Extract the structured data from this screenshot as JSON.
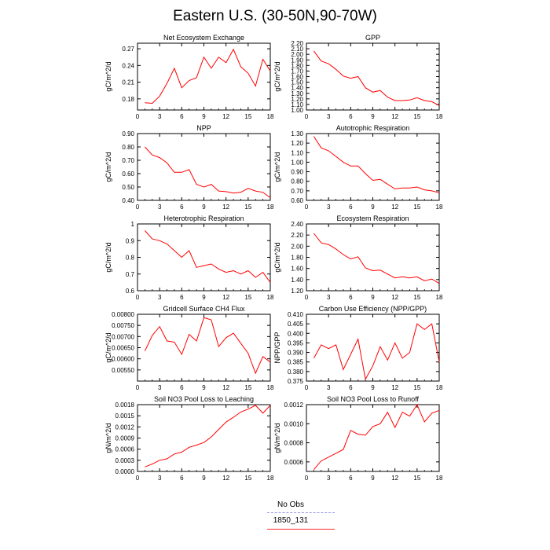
{
  "title": "Eastern U.S. (30-50N,90-70W)",
  "colors": {
    "series": "#ff0000",
    "obs": "#9999ee",
    "axis": "#000000"
  },
  "legend": [
    {
      "label": "No Obs",
      "style": "dashed",
      "color": "#9999ee"
    },
    {
      "label": "1850_131",
      "style": "solid",
      "color": "#ff2a2a"
    }
  ],
  "chart_data": [
    {
      "type": "line",
      "title": "Net Ecosystem Exchange",
      "ylabel": "gC/m^2/d",
      "xlim": [
        0,
        18
      ],
      "xticks": [
        0,
        3,
        6,
        9,
        12,
        15,
        18
      ],
      "ylim": [
        0.16,
        0.28
      ],
      "yticks": [
        "0.18",
        "0.21",
        "0.24",
        "0.27"
      ],
      "series": [
        {
          "x": [
            1,
            2,
            3,
            4,
            5,
            6,
            7,
            8,
            9,
            10,
            11,
            12,
            13,
            14,
            15,
            16,
            17,
            18
          ],
          "values": [
            0.173,
            0.172,
            0.185,
            0.208,
            0.235,
            0.2,
            0.213,
            0.218,
            0.255,
            0.235,
            0.255,
            0.245,
            0.269,
            0.238,
            0.226,
            0.203,
            0.251,
            0.23
          ]
        }
      ]
    },
    {
      "type": "line",
      "title": "GPP",
      "ylabel": "gC/m^2/d",
      "xlim": [
        0,
        18
      ],
      "xticks": [
        0,
        3,
        6,
        9,
        12,
        15,
        18
      ],
      "ylim": [
        1.0,
        2.2
      ],
      "yticks": [
        "1.00",
        "1.10",
        "1.20",
        "1.30",
        "1.40",
        "1.50",
        "1.60",
        "1.70",
        "1.80",
        "1.90",
        "2.00",
        "2.10",
        "2.20"
      ],
      "series": [
        {
          "x": [
            1,
            2,
            3,
            4,
            5,
            6,
            7,
            8,
            9,
            10,
            11,
            12,
            13,
            14,
            15,
            16,
            17,
            18
          ],
          "values": [
            2.06,
            1.88,
            1.83,
            1.73,
            1.61,
            1.57,
            1.6,
            1.4,
            1.32,
            1.35,
            1.23,
            1.17,
            1.17,
            1.18,
            1.22,
            1.17,
            1.15,
            1.08
          ]
        }
      ]
    },
    {
      "type": "line",
      "title": "NPP",
      "ylabel": "gC/m^2/d",
      "xlim": [
        0,
        18
      ],
      "xticks": [
        0,
        3,
        6,
        9,
        12,
        15,
        18
      ],
      "ylim": [
        0.4,
        0.9
      ],
      "yticks": [
        "0.40",
        "0.50",
        "0.60",
        "0.70",
        "0.80",
        "0.90"
      ],
      "series": [
        {
          "x": [
            1,
            2,
            3,
            4,
            5,
            6,
            7,
            8,
            9,
            10,
            11,
            12,
            13,
            14,
            15,
            16,
            17,
            18
          ],
          "values": [
            0.8,
            0.74,
            0.72,
            0.68,
            0.61,
            0.61,
            0.63,
            0.52,
            0.5,
            0.52,
            0.47,
            0.465,
            0.455,
            0.46,
            0.49,
            0.47,
            0.46,
            0.42
          ]
        }
      ]
    },
    {
      "type": "line",
      "title": "Autotrophic Respiration",
      "ylabel": "gC/m^2/d",
      "xlim": [
        0,
        18
      ],
      "xticks": [
        0,
        3,
        6,
        9,
        12,
        15,
        18
      ],
      "ylim": [
        0.6,
        1.3
      ],
      "yticks": [
        "0.60",
        "0.70",
        "0.80",
        "0.90",
        "1.00",
        "1.10",
        "1.20",
        "1.30"
      ],
      "series": [
        {
          "x": [
            1,
            2,
            3,
            4,
            5,
            6,
            7,
            8,
            9,
            10,
            11,
            12,
            13,
            14,
            15,
            16,
            17,
            18
          ],
          "values": [
            1.27,
            1.15,
            1.12,
            1.06,
            1.0,
            0.96,
            0.96,
            0.88,
            0.81,
            0.82,
            0.77,
            0.72,
            0.73,
            0.73,
            0.74,
            0.71,
            0.7,
            0.68
          ]
        }
      ]
    },
    {
      "type": "line",
      "title": "Heterotrophic Respiration",
      "ylabel": "gC/m^2/d",
      "xlim": [
        0,
        18
      ],
      "xticks": [
        0,
        3,
        6,
        9,
        12,
        15,
        18
      ],
      "ylim": [
        0.6,
        1.0
      ],
      "yticks": [
        "0.6",
        "0.7",
        "0.8",
        "0.9",
        "1"
      ],
      "series": [
        {
          "x": [
            1,
            2,
            3,
            4,
            5,
            6,
            7,
            8,
            9,
            10,
            11,
            12,
            13,
            14,
            15,
            16,
            17,
            18
          ],
          "values": [
            0.96,
            0.91,
            0.9,
            0.88,
            0.84,
            0.8,
            0.84,
            0.74,
            0.75,
            0.76,
            0.73,
            0.71,
            0.72,
            0.7,
            0.72,
            0.68,
            0.71,
            0.65
          ]
        }
      ]
    },
    {
      "type": "line",
      "title": "Ecosystem Respiration",
      "ylabel": "gC/m^2/d",
      "xlim": [
        0,
        18
      ],
      "xticks": [
        0,
        3,
        6,
        9,
        12,
        15,
        18
      ],
      "ylim": [
        1.2,
        2.4
      ],
      "yticks": [
        "1.20",
        "1.40",
        "1.60",
        "1.80",
        "2.00",
        "2.20",
        "2.40"
      ],
      "series": [
        {
          "x": [
            1,
            2,
            3,
            4,
            5,
            6,
            7,
            8,
            9,
            10,
            11,
            12,
            13,
            14,
            15,
            16,
            17,
            18
          ],
          "values": [
            2.23,
            2.06,
            2.03,
            1.95,
            1.85,
            1.77,
            1.81,
            1.61,
            1.56,
            1.57,
            1.5,
            1.43,
            1.45,
            1.43,
            1.45,
            1.38,
            1.41,
            1.33
          ]
        }
      ]
    },
    {
      "type": "line",
      "title": "Gridcell Surface CH4 Flux",
      "ylabel": "gC/m^2/d",
      "xlim": [
        0,
        18
      ],
      "xticks": [
        0,
        3,
        6,
        9,
        12,
        15,
        18
      ],
      "ylim": [
        0.005,
        0.008
      ],
      "yticks": [
        "0.00550",
        "0.00600",
        "0.00650",
        "0.00700",
        "0.00750",
        "0.00800"
      ],
      "series": [
        {
          "x": [
            1,
            2,
            3,
            4,
            5,
            6,
            7,
            8,
            9,
            10,
            11,
            12,
            13,
            14,
            15,
            16,
            17,
            18
          ],
          "values": [
            0.00635,
            0.00705,
            0.00745,
            0.0068,
            0.00675,
            0.0062,
            0.0071,
            0.0068,
            0.00785,
            0.00775,
            0.00655,
            0.00695,
            0.00715,
            0.0067,
            0.00625,
            0.00535,
            0.0061,
            0.00585
          ]
        }
      ]
    },
    {
      "type": "line",
      "title": "Carbon Use Efficiency (NPP/GPP)",
      "ylabel": "NPP/GPP",
      "xlim": [
        0,
        18
      ],
      "xticks": [
        0,
        3,
        6,
        9,
        12,
        15,
        18
      ],
      "ylim": [
        0.375,
        0.41
      ],
      "yticks": [
        "0.375",
        "0.380",
        "0.385",
        "0.390",
        "0.395",
        "0.400",
        "0.405",
        "0.410"
      ],
      "series": [
        {
          "x": [
            1,
            2,
            3,
            4,
            5,
            6,
            7,
            8,
            9,
            10,
            11,
            12,
            13,
            14,
            15,
            16,
            17,
            18
          ],
          "values": [
            0.387,
            0.394,
            0.392,
            0.394,
            0.381,
            0.389,
            0.397,
            0.376,
            0.383,
            0.393,
            0.386,
            0.395,
            0.387,
            0.39,
            0.405,
            0.402,
            0.405,
            0.385
          ]
        }
      ]
    },
    {
      "type": "line",
      "title": "Soil NO3 Pool Loss to Leaching",
      "ylabel": "gN/m^2/d",
      "xlim": [
        0,
        18
      ],
      "xticks": [
        0,
        3,
        6,
        9,
        12,
        15,
        18
      ],
      "ylim": [
        0.0,
        0.0018
      ],
      "yticks": [
        "0.0000",
        "0.0003",
        "0.0006",
        "0.0009",
        "0.0012",
        "0.0015",
        "0.0018"
      ],
      "series": [
        {
          "x": [
            1,
            2,
            3,
            4,
            5,
            6,
            7,
            8,
            9,
            10,
            11,
            12,
            13,
            14,
            15,
            16,
            17,
            18
          ],
          "values": [
            0.00012,
            0.0002,
            0.0003,
            0.00034,
            0.00047,
            0.00052,
            0.00065,
            0.00071,
            0.00078,
            0.00093,
            0.00113,
            0.00133,
            0.00146,
            0.0016,
            0.00168,
            0.00178,
            0.00157,
            0.00178
          ]
        }
      ]
    },
    {
      "type": "line",
      "title": "Soil NO3 Pool Loss to Runoff",
      "ylabel": "gN/m^2/d",
      "xlim": [
        0,
        18
      ],
      "xticks": [
        0,
        3,
        6,
        9,
        12,
        15,
        18
      ],
      "ylim": [
        0.0005,
        0.0012
      ],
      "yticks": [
        "0.0006",
        "0.0008",
        "0.0010",
        "0.0012"
      ],
      "series": [
        {
          "x": [
            1,
            2,
            3,
            4,
            5,
            6,
            7,
            8,
            9,
            10,
            11,
            12,
            13,
            14,
            15,
            16,
            17,
            18
          ],
          "values": [
            0.00052,
            0.00061,
            0.00065,
            0.00069,
            0.00073,
            0.00093,
            0.00089,
            0.00088,
            0.00097,
            0.001,
            0.00112,
            0.00096,
            0.00112,
            0.00108,
            0.0012,
            0.00102,
            0.00111,
            0.00114
          ]
        }
      ]
    }
  ]
}
